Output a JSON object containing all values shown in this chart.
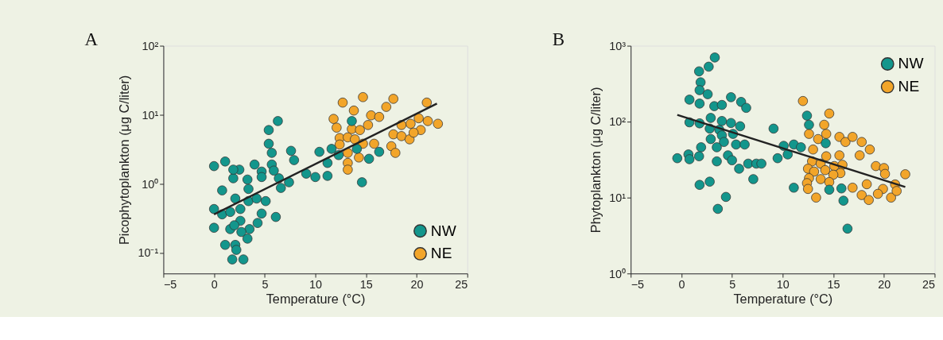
{
  "chart_data": [
    {
      "type": "scatter",
      "annotations": [
        "A"
      ],
      "xlabel": "Temperature (°C)",
      "ylabel": "Picophytoplankton (μg C/liter)",
      "xlim": [
        -5,
        25
      ],
      "xticks": [
        -5,
        0,
        5,
        10,
        15,
        20,
        25
      ],
      "ylim": [
        0.05,
        100
      ],
      "yticks": [
        {
          "value": 0.1,
          "label": "10⁻¹"
        },
        {
          "value": 1,
          "label": "10⁰"
        },
        {
          "value": 10,
          "label": "10¹"
        },
        {
          "value": 100,
          "label": "10²"
        }
      ],
      "log": true,
      "grid": false,
      "legend": "bottom right",
      "marker": "circle",
      "series": [
        {
          "name": "NW",
          "color": "#13968c",
          "x": [
            0,
            1.1,
            0,
            0,
            0.8,
            1.9,
            2.5,
            4.0,
            4.7,
            5.7,
            6.3,
            5.4,
            5.4,
            5.7,
            7.6,
            7.9,
            6.4,
            7.4,
            6.6,
            9.1,
            10.0,
            10.4,
            11.2,
            11.2,
            11.6,
            12.3,
            13.6,
            14.1,
            15.3,
            16.3,
            14.6,
            3.3,
            3.4,
            2.1,
            2.6,
            3.4,
            4.2,
            5.1,
            4.7,
            6.1,
            0.8,
            1.6,
            2.6,
            1.6,
            2.0,
            4.3,
            3.5,
            2.7,
            3.3,
            1.1,
            2.1,
            2.2,
            1.8,
            2.9,
            1.9,
            4.7,
            5.9
          ],
          "values": [
            1.8,
            2.1,
            0.43,
            0.23,
            0.8,
            1.2,
            1.6,
            1.9,
            1.5,
            1.9,
            8.1,
            6,
            3.8,
            2.8,
            3.0,
            2.2,
            1.2,
            1.05,
            0.87,
            1.4,
            1.25,
            2.9,
            1.3,
            2.0,
            3.2,
            2.6,
            8.1,
            3.2,
            2.3,
            2.9,
            1.05,
            1.15,
            0.84,
            0.61,
            0.43,
            0.56,
            0.61,
            0.56,
            0.37,
            0.33,
            0.36,
            0.39,
            0.29,
            0.22,
            0.25,
            0.27,
            0.22,
            0.2,
            0.16,
            0.13,
            0.13,
            0.11,
            0.08,
            0.08,
            1.6,
            1.25,
            1.55
          ]
        },
        {
          "name": "NE",
          "color": "#f2a52a",
          "x": [
            12.7,
            14.7,
            17.7,
            21.0,
            13.8,
            11.8,
            12.1,
            15.5,
            16.3,
            17.0,
            13.6,
            14.4,
            15.2,
            12.4,
            13.2,
            13.9,
            14.7,
            15.8,
            12.4,
            13.2,
            13.2,
            13.2,
            14.3,
            17.5,
            17.9,
            17.7,
            18.5,
            19.4,
            20.2,
            21.1,
            22.1,
            18.5,
            19.3,
            20.4,
            19.7
          ],
          "values": [
            15,
            18,
            17,
            15,
            11.5,
            8.7,
            6.5,
            9.8,
            9.3,
            13,
            6.2,
            6,
            7.1,
            4.6,
            4.7,
            4.4,
            3.8,
            3.8,
            3.7,
            2.8,
            2.0,
            1.6,
            2.4,
            3.5,
            2.8,
            5.2,
            7.1,
            7.4,
            8.9,
            8.1,
            7.4,
            4.9,
            4.4,
            6,
            5.5
          ]
        },
        {
          "type": "line",
          "color": "#222222",
          "marker": "none",
          "x": [
            0,
            22
          ],
          "values": [
            0.36,
            14.5
          ]
        }
      ]
    },
    {
      "type": "scatter",
      "annotations": [
        "B"
      ],
      "xlabel": "Temperature (°C)",
      "ylabel": "Phytoplankton (μg C/liter)",
      "xlim": [
        -5,
        25
      ],
      "xticks": [
        -5,
        0,
        5,
        10,
        15,
        20,
        25
      ],
      "ylim": [
        1,
        1000
      ],
      "yticks": [
        {
          "value": 1,
          "label": "10⁰"
        },
        {
          "value": 10,
          "label": "10¹"
        },
        {
          "value": 100,
          "label": "10²"
        },
        {
          "value": 1000,
          "label": "10³"
        }
      ],
      "log": true,
      "grid": false,
      "legend": "top right",
      "marker": "circle",
      "series": [
        {
          "name": "NW",
          "color": "#13968c",
          "x": [
            3.3,
            2.7,
            1.75,
            1.9,
            1.8,
            2.6,
            0.8,
            1.8,
            3.25,
            4.0,
            4.9,
            5.9,
            6.4,
            0.8,
            1.8,
            2.9,
            4.0,
            4.9,
            5.8,
            2.8,
            3.75,
            5.1,
            4.0,
            2.9,
            4.2,
            5.4,
            6.25,
            3.5,
            1.95,
            0.7,
            -0.4,
            0.8,
            1.75,
            4.6,
            5.0,
            3.5,
            5.7,
            6.6,
            7.4,
            7.9,
            7.1,
            1.8,
            2.8,
            4.4,
            3.6,
            9.1,
            10.1,
            9.5,
            10.5,
            11.1,
            11.8,
            12.4,
            12.6,
            14.25,
            11.1,
            14.6,
            15.8,
            16.0,
            16.4
          ],
          "values": [
            700,
            530,
            460,
            330,
            260,
            230,
            195,
            173,
            160,
            166,
            210,
            182,
            152,
            98,
            95,
            112,
            102,
            96,
            87,
            81,
            78,
            69,
            66,
            59,
            54,
            50,
            50,
            46,
            46,
            37,
            33,
            32,
            35,
            36,
            31,
            30,
            24,
            28,
            28,
            28,
            17.5,
            14.7,
            16.2,
            10.2,
            7.1,
            81,
            48,
            33,
            37,
            50,
            46,
            120,
            91,
            52,
            13.5,
            12.7,
            13.2,
            9.1,
            3.9
          ]
        },
        {
          "name": "NE",
          "color": "#f2a52a",
          "x": [
            12.0,
            14.6,
            14.1,
            12.6,
            13.5,
            14.3,
            15.6,
            16.2,
            16.9,
            17.8,
            18.6,
            17.6,
            15.6,
            14.3,
            13.0,
            12.9,
            13.75,
            15.1,
            15.9,
            12.5,
            13.1,
            14.2,
            15.7,
            15.0,
            12.6,
            13.75,
            12.4,
            14.6,
            12.5,
            13.3,
            16.9,
            18.3,
            17.8,
            18.5,
            19.2,
            20.0,
            20.1,
            19.9,
            19.4,
            20.7,
            21.1,
            21.25,
            22.1
          ],
          "values": [
            187,
            128,
            91,
            69,
            59,
            69,
            63,
            54,
            63,
            54,
            43,
            36,
            36,
            35,
            43,
            30,
            28,
            26,
            27,
            24,
            22,
            23,
            21,
            20,
            18,
            17.5,
            15.5,
            16,
            13,
            10,
            13.5,
            15,
            10.8,
            9.3,
            26,
            24.5,
            20.5,
            13,
            11.2,
            10,
            14.9,
            12.2,
            20.3
          ]
        },
        {
          "type": "line",
          "color": "#222222",
          "marker": "none",
          "x": [
            -0.4,
            22.1
          ],
          "values": [
            123,
            13.8
          ]
        }
      ]
    }
  ]
}
